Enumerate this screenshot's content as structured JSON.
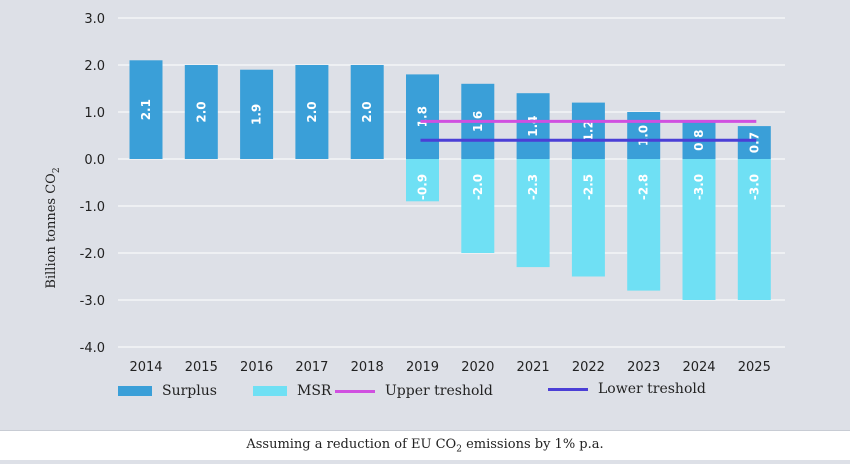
{
  "chart_data": {
    "type": "bar",
    "categories": [
      "2014",
      "2015",
      "2016",
      "2017",
      "2018",
      "2019",
      "2020",
      "2021",
      "2022",
      "2023",
      "2024",
      "2025"
    ],
    "series": [
      {
        "name": "Surplus",
        "values": [
          2.1,
          2.0,
          1.9,
          2.0,
          2.0,
          1.8,
          1.6,
          1.4,
          1.2,
          1.0,
          0.8,
          0.7
        ],
        "labels": [
          "2.1",
          "2.0",
          "1.9",
          "2.0",
          "2.0",
          "1.8",
          "1.6",
          "1.4",
          "1.2",
          "1.0",
          "0.8",
          "0.7"
        ]
      },
      {
        "name": "MSR",
        "values": [
          null,
          null,
          null,
          null,
          null,
          -0.9,
          -2.0,
          -2.3,
          -2.5,
          -2.8,
          -3.0,
          -3.0
        ],
        "labels": [
          "",
          "",
          "",
          "",
          "",
          "-0.9",
          "-2.0",
          "-2.3",
          "-2.5",
          "-2.8",
          "-3.0",
          "-3.0"
        ]
      }
    ],
    "lines": [
      {
        "name": "Upper treshold",
        "value": 0.8,
        "from": "2019",
        "to": "2025"
      },
      {
        "name": "Lower treshold",
        "value": 0.4,
        "from": "2019",
        "to": "2025"
      }
    ],
    "ylim": [
      -4.0,
      3.0
    ],
    "yticks": [
      "3.0",
      "2.0",
      "1.0",
      "0.0",
      "-1.0",
      "-2.0",
      "-3.0",
      "-4.0"
    ],
    "ylabel": "Billion tonnes CO",
    "ylabel_sub": "2",
    "grid": true,
    "legend_position": "bottom"
  },
  "colors": {
    "surplus": "#3a9fd8",
    "msr": "#6fe0f4",
    "upper": "#d050e0",
    "lower": "#4b3fd6",
    "grid": "#ffffff",
    "text": "#222222"
  },
  "legend": {
    "surplus": "Surplus",
    "msr": "MSR",
    "upper": "Upper treshold",
    "lower": "Lower treshold"
  },
  "caption": {
    "before": "Assuming a reduction of EU CO",
    "sub": "2",
    "after": " emissions by 1% p.a."
  }
}
